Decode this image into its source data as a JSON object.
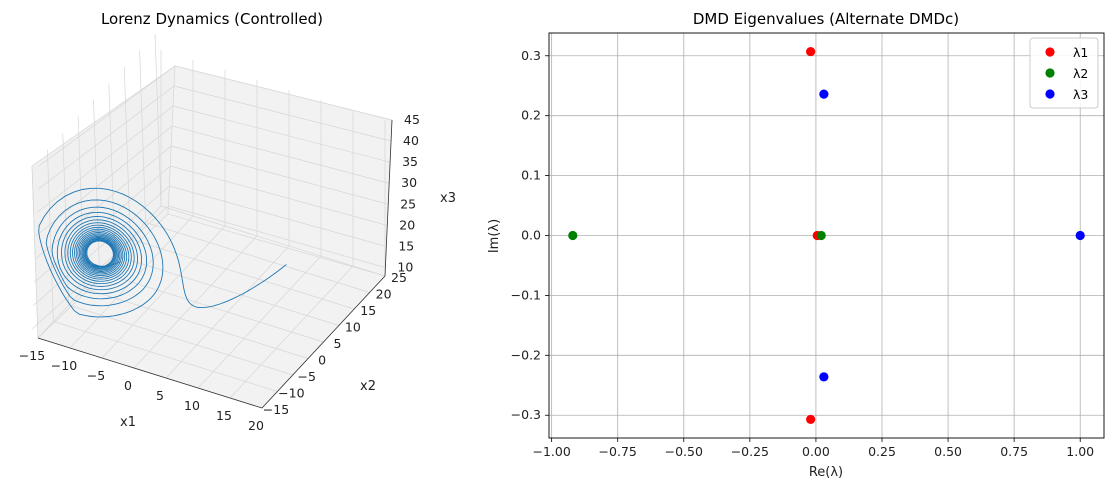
{
  "chart_data": [
    {
      "type": "line3d",
      "title": "Lorenz Dynamics (Controlled)",
      "xlabel": "x1",
      "ylabel": "x2",
      "zlabel": "x3",
      "xticks": [
        "−15",
        "−10",
        "−5",
        "0",
        "5",
        "10",
        "15",
        "20"
      ],
      "yticks": [
        "−15",
        "−10",
        "−5",
        "0",
        "5",
        "10",
        "15",
        "20",
        "25"
      ],
      "zticks": [
        "10",
        "15",
        "20",
        "25",
        "30",
        "35",
        "40",
        "45"
      ],
      "xlim": [
        -15,
        20
      ],
      "ylim": [
        -15,
        25
      ],
      "zlim": [
        8,
        45
      ],
      "line_color": "#1f77b4",
      "lorenz": {
        "sigma": 10,
        "rho": 28,
        "beta": 2.6667,
        "x0": [
          1,
          1,
          1
        ],
        "dt": 0.01,
        "steps": 1400
      }
    },
    {
      "type": "scatter",
      "title": "DMD Eigenvalues (Alternate DMDc)",
      "xlabel": "Re(λ)",
      "ylabel": "Im(λ)",
      "xticks": [
        "−1.00",
        "−0.75",
        "−0.50",
        "−0.25",
        "0.00",
        "0.25",
        "0.50",
        "0.75",
        "1.00"
      ],
      "yticks": [
        "−0.3",
        "−0.2",
        "−0.1",
        "0.0",
        "0.1",
        "0.2",
        "0.3"
      ],
      "xtick_values": [
        -1,
        -0.75,
        -0.5,
        -0.25,
        0,
        0.25,
        0.5,
        0.75,
        1
      ],
      "ytick_values": [
        -0.3,
        -0.2,
        -0.1,
        0,
        0.1,
        0.2,
        0.3
      ],
      "xlim": [
        -1.01,
        1.09
      ],
      "ylim": [
        -0.338,
        0.338
      ],
      "grid": true,
      "legend_position": "top-right",
      "series": [
        {
          "name": "λ1",
          "color": "#ff0000",
          "points": [
            [
              -0.02,
              0.307
            ],
            [
              0.005,
              0.0
            ],
            [
              -0.02,
              -0.307
            ]
          ]
        },
        {
          "name": "λ2",
          "color": "#008000",
          "points": [
            [
              -0.92,
              0.0
            ],
            [
              0.02,
              0.0
            ]
          ]
        },
        {
          "name": "λ3",
          "color": "#0000ff",
          "points": [
            [
              0.03,
              0.236
            ],
            [
              1.0,
              0.0
            ],
            [
              0.03,
              -0.236
            ]
          ]
        }
      ]
    }
  ]
}
